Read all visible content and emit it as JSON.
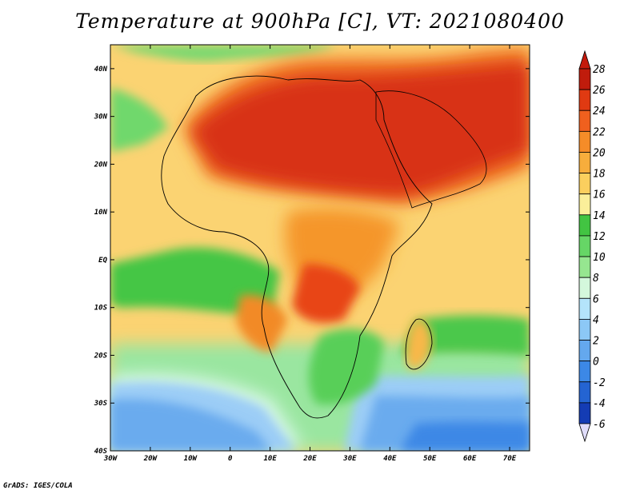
{
  "title": "Temperature at 900hPa [C], VT: 2021080400",
  "credit": "GrADS: IGES/COLA",
  "map": {
    "lon_range": [
      -30,
      75
    ],
    "lat_range": [
      -40,
      45
    ],
    "lon_ticks": [
      {
        "value": -30,
        "label": "30W"
      },
      {
        "value": -20,
        "label": "20W"
      },
      {
        "value": -10,
        "label": "10W"
      },
      {
        "value": 0,
        "label": "0"
      },
      {
        "value": 10,
        "label": "10E"
      },
      {
        "value": 20,
        "label": "20E"
      },
      {
        "value": 30,
        "label": "30E"
      },
      {
        "value": 40,
        "label": "40E"
      },
      {
        "value": 50,
        "label": "50E"
      },
      {
        "value": 60,
        "label": "60E"
      },
      {
        "value": 70,
        "label": "70E"
      }
    ],
    "lat_ticks": [
      {
        "value": 40,
        "label": "40N"
      },
      {
        "value": 30,
        "label": "30N"
      },
      {
        "value": 20,
        "label": "20N"
      },
      {
        "value": 10,
        "label": "10N"
      },
      {
        "value": 0,
        "label": "EQ"
      },
      {
        "value": -10,
        "label": "10S"
      },
      {
        "value": -20,
        "label": "20S"
      },
      {
        "value": -30,
        "label": "30S"
      },
      {
        "value": -40,
        "label": "40S"
      }
    ]
  },
  "colorbar": {
    "labels": [
      "28",
      "26",
      "24",
      "22",
      "20",
      "18",
      "16",
      "14",
      "12",
      "10",
      "8",
      "6",
      "4",
      "2",
      "0",
      "-2",
      "-4",
      "-6"
    ],
    "colors": [
      "#c01c0c",
      "#e03a12",
      "#f0601e",
      "#f58c28",
      "#f7ad3c",
      "#fbcf5e",
      "#fbef9a",
      "#42c442",
      "#66d666",
      "#96e690",
      "#d4f8dc",
      "#b4e4fb",
      "#8cc8f6",
      "#64a8ee",
      "#3c88e6",
      "#2464d2",
      "#143cb4",
      "#0c1c84"
    ],
    "top_arrow_color": "#c41a0c",
    "bottom_arrow_color": "#e0ddfa"
  }
}
